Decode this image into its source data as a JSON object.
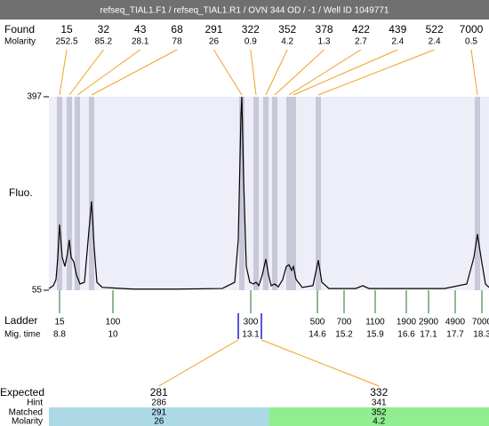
{
  "header": {
    "title": "refseq_TIAL1.F1 / refseq_TIAL1.R1 / OVN 344 OD / -1 / Well ID 1049771"
  },
  "chart_data": {
    "type": "line",
    "ylabel": "Fluo.",
    "ylim": [
      55,
      397
    ],
    "yticks": [
      55,
      397
    ],
    "xlim": [
      8.56,
      18.46
    ],
    "color": "#000000",
    "background": "#eeeef8",
    "band_color": "#c8c8d8",
    "connector_color": "#f0a020",
    "x": [
      8.56,
      8.66,
      8.72,
      8.76,
      8.8,
      8.86,
      8.92,
      8.98,
      9.02,
      9.06,
      9.12,
      9.18,
      9.26,
      9.36,
      9.46,
      9.52,
      9.58,
      9.64,
      9.76,
      10.46,
      11.46,
      12.46,
      12.74,
      12.82,
      12.88,
      12.9,
      12.94,
      13.0,
      13.08,
      13.16,
      13.22,
      13.28,
      13.36,
      13.44,
      13.5,
      13.56,
      13.64,
      13.72,
      13.82,
      13.9,
      13.96,
      14.02,
      14.06,
      14.12,
      14.26,
      14.5,
      14.62,
      14.7,
      14.86,
      15.46,
      15.62,
      15.76,
      17.46,
      17.96,
      18.12,
      18.2,
      18.28,
      18.38,
      18.46
    ],
    "values": [
      58,
      63,
      74,
      113,
      171,
      113,
      97,
      121,
      144,
      113,
      105,
      82,
      66,
      69,
      160,
      212,
      129,
      69,
      60,
      57,
      57,
      58,
      69,
      144,
      364,
      397,
      251,
      97,
      69,
      66,
      69,
      63,
      82,
      110,
      82,
      63,
      66,
      61,
      74,
      97,
      100,
      90,
      97,
      74,
      60,
      63,
      108,
      69,
      58,
      58,
      63,
      58,
      58,
      66,
      113,
      154,
      113,
      66,
      60
    ],
    "found": {
      "label": "Found",
      "molarity_label": "Molarity",
      "sizes": [
        15,
        32,
        43,
        68,
        291,
        322,
        352,
        378,
        422,
        439,
        522,
        7000
      ],
      "molarity": [
        252.5,
        85.2,
        28.1,
        78,
        26,
        0.9,
        4.2,
        1.3,
        2.7,
        2.4,
        2.4,
        0.5
      ],
      "times": [
        8.8,
        9.02,
        9.2,
        9.52,
        12.9,
        13.22,
        13.44,
        13.64,
        13.96,
        14.06,
        14.62,
        18.2
      ]
    },
    "ladder": {
      "label": "Ladder",
      "time_label": "Mig. time",
      "color": "#207020",
      "highlight_color": "#2020c0",
      "sizes": [
        15,
        100,
        300,
        500,
        700,
        1100,
        1900,
        2900,
        4900,
        7000
      ],
      "times": [
        8.8,
        10,
        13.1,
        14.6,
        15.2,
        15.9,
        16.6,
        17.1,
        17.7,
        18.3
      ]
    },
    "expected": {
      "label": "Expected",
      "hint_label": "Hint",
      "matched_label": "Matched",
      "molarity_label": "Molarity",
      "columns": [
        {
          "expected": 281,
          "hint": 286,
          "matched": 291,
          "molarity": 26,
          "time": 12.82,
          "color": "#add8e6"
        },
        {
          "expected": 332,
          "hint": 341,
          "matched": 352,
          "molarity": 4.2,
          "time": 13.34,
          "color": "#90ee90"
        }
      ]
    }
  }
}
